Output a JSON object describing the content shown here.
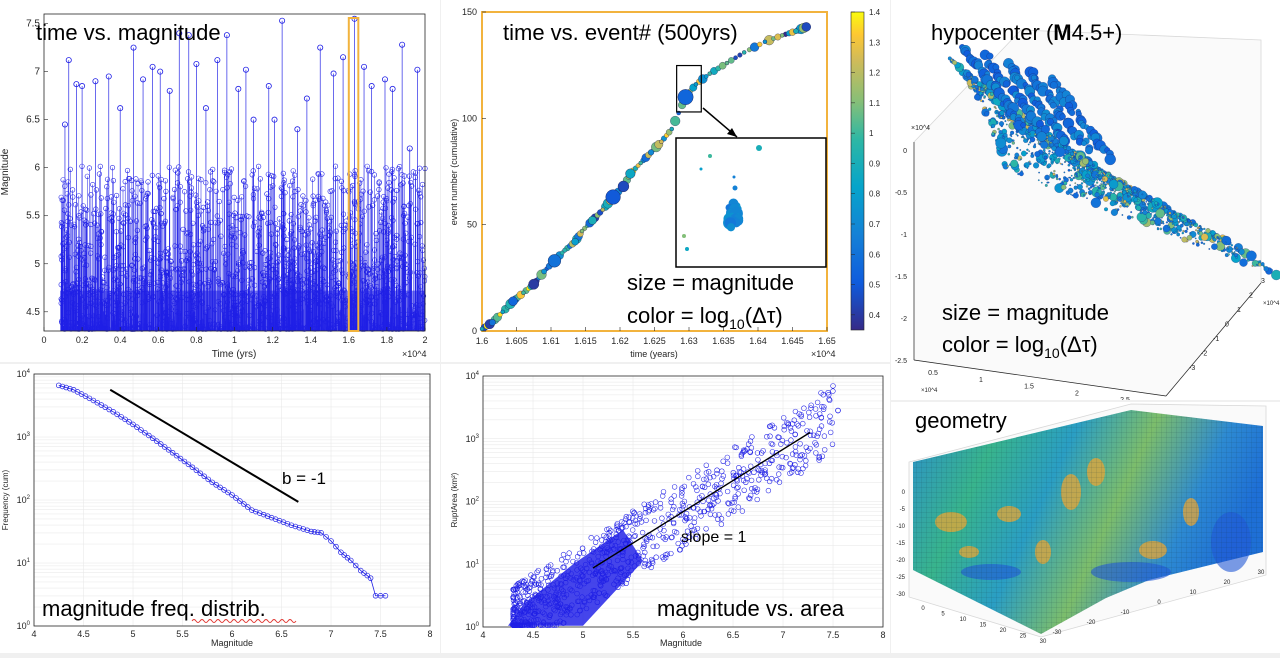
{
  "chart_data": [
    {
      "id": "time_mag",
      "type": "stem",
      "title": "time vs. magnitude",
      "xlabel": "Time (yrs)",
      "ylabel": "Magnitude",
      "x_exponent": "×10^4",
      "xlim": [
        0,
        2
      ],
      "ylim": [
        4.3,
        7.6
      ],
      "xticks": [
        "0",
        "0.2",
        "0.4",
        "0.6",
        "0.8",
        "1",
        "1.2",
        "1.4",
        "1.6",
        "1.8",
        "2"
      ],
      "yticks": [
        "4.5",
        "5",
        "5.5",
        "6",
        "6.5",
        "7",
        "7.5"
      ],
      "highlight_x_range": [
        1.6,
        1.65
      ],
      "large_events": [
        {
          "x": 0.11,
          "y": 6.45
        },
        {
          "x": 0.13,
          "y": 7.12
        },
        {
          "x": 0.17,
          "y": 6.87
        },
        {
          "x": 0.2,
          "y": 6.85
        },
        {
          "x": 0.27,
          "y": 6.9
        },
        {
          "x": 0.34,
          "y": 6.95
        },
        {
          "x": 0.4,
          "y": 6.62
        },
        {
          "x": 0.47,
          "y": 7.25
        },
        {
          "x": 0.52,
          "y": 6.92
        },
        {
          "x": 0.57,
          "y": 7.05
        },
        {
          "x": 0.61,
          "y": 7.0
        },
        {
          "x": 0.66,
          "y": 6.8
        },
        {
          "x": 0.71,
          "y": 7.4
        },
        {
          "x": 0.76,
          "y": 7.38
        },
        {
          "x": 0.8,
          "y": 7.08
        },
        {
          "x": 0.85,
          "y": 6.62
        },
        {
          "x": 0.91,
          "y": 7.12
        },
        {
          "x": 0.96,
          "y": 7.38
        },
        {
          "x": 1.02,
          "y": 6.82
        },
        {
          "x": 1.06,
          "y": 7.02
        },
        {
          "x": 1.1,
          "y": 6.5
        },
        {
          "x": 1.18,
          "y": 6.85
        },
        {
          "x": 1.21,
          "y": 6.5
        },
        {
          "x": 1.25,
          "y": 7.53
        },
        {
          "x": 1.33,
          "y": 6.4
        },
        {
          "x": 1.38,
          "y": 6.72
        },
        {
          "x": 1.45,
          "y": 7.25
        },
        {
          "x": 1.52,
          "y": 6.98
        },
        {
          "x": 1.57,
          "y": 7.15
        },
        {
          "x": 1.63,
          "y": 7.55
        },
        {
          "x": 1.68,
          "y": 7.05
        },
        {
          "x": 1.72,
          "y": 6.85
        },
        {
          "x": 1.79,
          "y": 6.92
        },
        {
          "x": 1.83,
          "y": 6.82
        },
        {
          "x": 1.88,
          "y": 7.28
        },
        {
          "x": 1.92,
          "y": 6.2
        },
        {
          "x": 1.96,
          "y": 7.02
        }
      ]
    },
    {
      "id": "time_event",
      "type": "scatter",
      "title": "time vs. event# (500yrs)",
      "xlabel": "time (years)",
      "ylabel": "event number (cumulative)",
      "x_exponent": "×10^4",
      "xlim": [
        1.6,
        1.65
      ],
      "ylim": [
        0,
        150
      ],
      "xticks": [
        "1.6",
        "1.605",
        "1.61",
        "1.615",
        "1.62",
        "1.625",
        "1.63",
        "1.635",
        "1.64",
        "1.645",
        "1.65"
      ],
      "yticks": [
        "0",
        "50",
        "100",
        "150"
      ],
      "colorbar": {
        "min": 0.35,
        "max": 1.4,
        "ticks": [
          "0.4",
          "0.5",
          "0.6",
          "0.7",
          "0.8",
          "0.9",
          "1",
          "1.1",
          "1.2",
          "1.3",
          "1.4"
        ]
      },
      "annotation_size": "size = magnitude",
      "annotation_color": "color = log",
      "annotation_color_sub": "10",
      "annotation_color_tail": "(Δτ)",
      "points": [
        {
          "x": 1.6,
          "y": 1,
          "m": 4.5,
          "c": 0.9
        },
        {
          "x": 1.6015,
          "y": 4,
          "m": 5.2,
          "c": 0.6
        },
        {
          "x": 1.603,
          "y": 9,
          "m": 4.8,
          "c": 0.85
        },
        {
          "x": 1.6045,
          "y": 14,
          "m": 5.6,
          "c": 0.55
        },
        {
          "x": 1.606,
          "y": 18,
          "m": 4.6,
          "c": 1.0
        },
        {
          "x": 1.6075,
          "y": 22,
          "m": 5.8,
          "c": 0.4
        },
        {
          "x": 1.609,
          "y": 28,
          "m": 5.0,
          "c": 0.75
        },
        {
          "x": 1.6105,
          "y": 33,
          "m": 6.2,
          "c": 0.6
        },
        {
          "x": 1.612,
          "y": 38,
          "m": 4.9,
          "c": 0.95
        },
        {
          "x": 1.6135,
          "y": 42,
          "m": 5.3,
          "c": 0.8
        },
        {
          "x": 1.6145,
          "y": 47,
          "m": 4.6,
          "c": 1.1
        },
        {
          "x": 1.616,
          "y": 52,
          "m": 5.5,
          "c": 0.9
        },
        {
          "x": 1.6175,
          "y": 57,
          "m": 4.7,
          "c": 1.2
        },
        {
          "x": 1.619,
          "y": 63,
          "m": 6.5,
          "c": 0.5
        },
        {
          "x": 1.6205,
          "y": 68,
          "m": 5.9,
          "c": 0.45
        },
        {
          "x": 1.6215,
          "y": 74,
          "m": 5.7,
          "c": 0.85
        },
        {
          "x": 1.623,
          "y": 79,
          "m": 4.8,
          "c": 1.0
        },
        {
          "x": 1.6245,
          "y": 84,
          "m": 5.1,
          "c": 0.7
        },
        {
          "x": 1.626,
          "y": 89,
          "m": 4.6,
          "c": 1.25
        },
        {
          "x": 1.6275,
          "y": 95,
          "m": 4.7,
          "c": 0.9
        },
        {
          "x": 1.6295,
          "y": 110,
          "m": 6.6,
          "c": 0.55
        },
        {
          "x": 1.631,
          "y": 116,
          "m": 4.8,
          "c": 0.8
        },
        {
          "x": 1.633,
          "y": 121,
          "m": 4.5,
          "c": 1.0
        },
        {
          "x": 1.6355,
          "y": 126,
          "m": 4.6,
          "c": 1.05
        },
        {
          "x": 1.638,
          "y": 131,
          "m": 4.5,
          "c": 0.95
        },
        {
          "x": 1.641,
          "y": 136,
          "m": 4.7,
          "c": 0.75
        },
        {
          "x": 1.6435,
          "y": 139,
          "m": 4.5,
          "c": 1.1
        },
        {
          "x": 1.6455,
          "y": 141,
          "m": 5.0,
          "c": 0.9
        },
        {
          "x": 1.647,
          "y": 143,
          "m": 5.6,
          "c": 0.45
        }
      ],
      "zoom_box_x": [
        1.6285,
        1.6312
      ],
      "zoom_box_y": [
        103,
        122
      ]
    },
    {
      "id": "hypocenter",
      "type": "scatter3d",
      "title": "hypocenter (",
      "title_bold": "M",
      "title_tail": "4.5+)",
      "annotation_size": "size = magnitude",
      "annotation_color": "color = log",
      "annotation_color_sub": "10",
      "annotation_color_tail": "(Δτ)",
      "z_exponent": "×10^4",
      "x_exponent": "×10^4",
      "y_exponent": "×10^4",
      "zticks": [
        "0",
        "-0.5",
        "-1",
        "-1.5",
        "-2",
        "-2.5"
      ],
      "xticks": [
        "0.5",
        "1",
        "1.5",
        "2",
        "2.5"
      ],
      "yticks": [
        "-3",
        "-2",
        "-1",
        "0",
        "1",
        "2",
        "3"
      ]
    },
    {
      "id": "mfd",
      "type": "line",
      "title": "magnitude freq. distrib.",
      "xlabel": "Magnitude",
      "ylabel": "Frequency (cum)",
      "xlim": [
        4,
        8
      ],
      "ylim_log10": [
        0,
        4
      ],
      "xticks": [
        "4",
        "4.5",
        "5",
        "5.5",
        "6",
        "6.5",
        "7",
        "7.5",
        "8"
      ],
      "yticks_base": "10",
      "yticks_exp": [
        "0",
        "1",
        "2",
        "3",
        "4"
      ],
      "reference_line_label": "b = -1",
      "reference_line": [
        {
          "x": 4.77,
          "log_y": 3.75
        },
        {
          "x": 6.67,
          "log_y": 1.97
        }
      ],
      "series": [
        {
          "x": 4.25,
          "log_y": 3.82
        },
        {
          "x": 4.4,
          "log_y": 3.75
        },
        {
          "x": 4.6,
          "log_y": 3.58
        },
        {
          "x": 4.8,
          "log_y": 3.4
        },
        {
          "x": 5.0,
          "log_y": 3.2
        },
        {
          "x": 5.2,
          "log_y": 2.98
        },
        {
          "x": 5.4,
          "log_y": 2.75
        },
        {
          "x": 5.6,
          "log_y": 2.52
        },
        {
          "x": 5.8,
          "log_y": 2.28
        },
        {
          "x": 6.0,
          "log_y": 2.08
        },
        {
          "x": 6.2,
          "log_y": 1.84
        },
        {
          "x": 6.4,
          "log_y": 1.72
        },
        {
          "x": 6.6,
          "log_y": 1.6
        },
        {
          "x": 6.8,
          "log_y": 1.5
        },
        {
          "x": 6.9,
          "log_y": 1.48
        },
        {
          "x": 7.0,
          "log_y": 1.35
        },
        {
          "x": 7.1,
          "log_y": 1.17
        },
        {
          "x": 7.2,
          "log_y": 1.04
        },
        {
          "x": 7.3,
          "log_y": 0.88
        },
        {
          "x": 7.4,
          "log_y": 0.76
        },
        {
          "x": 7.45,
          "log_y": 0.48
        },
        {
          "x": 7.55,
          "log_y": 0.48
        }
      ]
    },
    {
      "id": "mag_area",
      "type": "scatter",
      "title": "magnitude vs. area",
      "xlabel": "Magnitude",
      "ylabel": "RuptArea (km²)",
      "xlim": [
        4,
        8
      ],
      "ylim_log10": [
        0,
        4
      ],
      "xticks": [
        "4",
        "4.5",
        "5",
        "5.5",
        "6",
        "6.5",
        "7",
        "7.5",
        "8"
      ],
      "yticks_base": "10",
      "yticks_exp": [
        "0",
        "1",
        "2",
        "3",
        "4"
      ],
      "slope_label": "slope = 1",
      "fit_line": [
        {
          "x": 5.1,
          "log_y": 0.94
        },
        {
          "x": 7.27,
          "log_y": 3.1
        }
      ],
      "m_range": [
        4.25,
        7.55
      ]
    },
    {
      "id": "geometry",
      "type": "surface3d",
      "title": "geometry",
      "zticks": [
        "0",
        "-5",
        "-10",
        "-15",
        "-20",
        "-25",
        "-30"
      ],
      "xticks": [
        "0",
        "5",
        "10",
        "15",
        "20",
        "25",
        "30"
      ],
      "yticks": [
        "-30",
        "-20",
        "-10",
        "0",
        "10",
        "20",
        "30"
      ]
    }
  ]
}
